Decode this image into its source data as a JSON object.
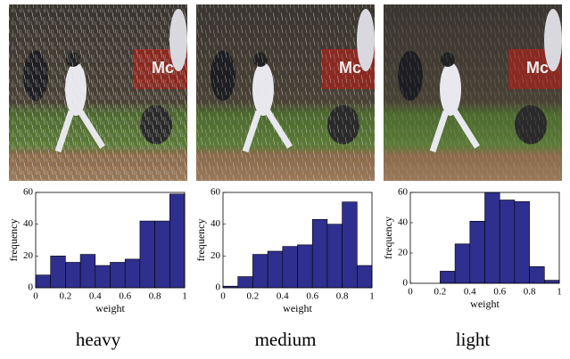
{
  "chart_data": [
    {
      "type": "histogram",
      "title": "heavy",
      "xlabel": "weight",
      "ylabel": "frequency",
      "color": "#2f2f8f",
      "bins": [
        0,
        0.1,
        0.2,
        0.3,
        0.4,
        0.5,
        0.6,
        0.7,
        0.8,
        0.9,
        1
      ],
      "values": [
        8,
        20,
        16,
        21,
        14,
        16,
        18,
        42,
        42,
        59
      ],
      "xlim": [
        0,
        1
      ],
      "xticks": [
        0,
        0.2,
        0.4,
        0.6,
        0.8,
        1
      ],
      "ylim": [
        0,
        60
      ],
      "yticks": [
        0,
        20,
        40,
        60
      ]
    },
    {
      "type": "histogram",
      "title": "medium",
      "xlabel": "weight",
      "ylabel": "frequency",
      "color": "#2f2f8f",
      "bins": [
        0,
        0.1,
        0.2,
        0.3,
        0.4,
        0.5,
        0.6,
        0.7,
        0.8,
        0.9,
        1
      ],
      "values": [
        1,
        7,
        21,
        23,
        26,
        27,
        43,
        40,
        54,
        14
      ],
      "xlim": [
        0,
        1
      ],
      "xticks": [
        0,
        0.2,
        0.4,
        0.6,
        0.8,
        1
      ],
      "ylim": [
        0,
        60
      ],
      "yticks": [
        0,
        20,
        40,
        60
      ]
    },
    {
      "type": "histogram",
      "title": "light",
      "xlabel": "weight",
      "ylabel": "frequency",
      "color": "#2f2f8f",
      "bins": [
        0,
        0.1,
        0.2,
        0.3,
        0.4,
        0.5,
        0.6,
        0.7,
        0.8,
        0.9,
        1
      ],
      "values": [
        0,
        0,
        8,
        26,
        41,
        60,
        55,
        54,
        11,
        2
      ],
      "xlim": [
        0,
        1
      ],
      "xticks": [
        0,
        0.2,
        0.4,
        0.6,
        0.8,
        1
      ],
      "ylim": [
        0,
        60
      ],
      "yticks": [
        0,
        20,
        40,
        60
      ]
    }
  ]
}
